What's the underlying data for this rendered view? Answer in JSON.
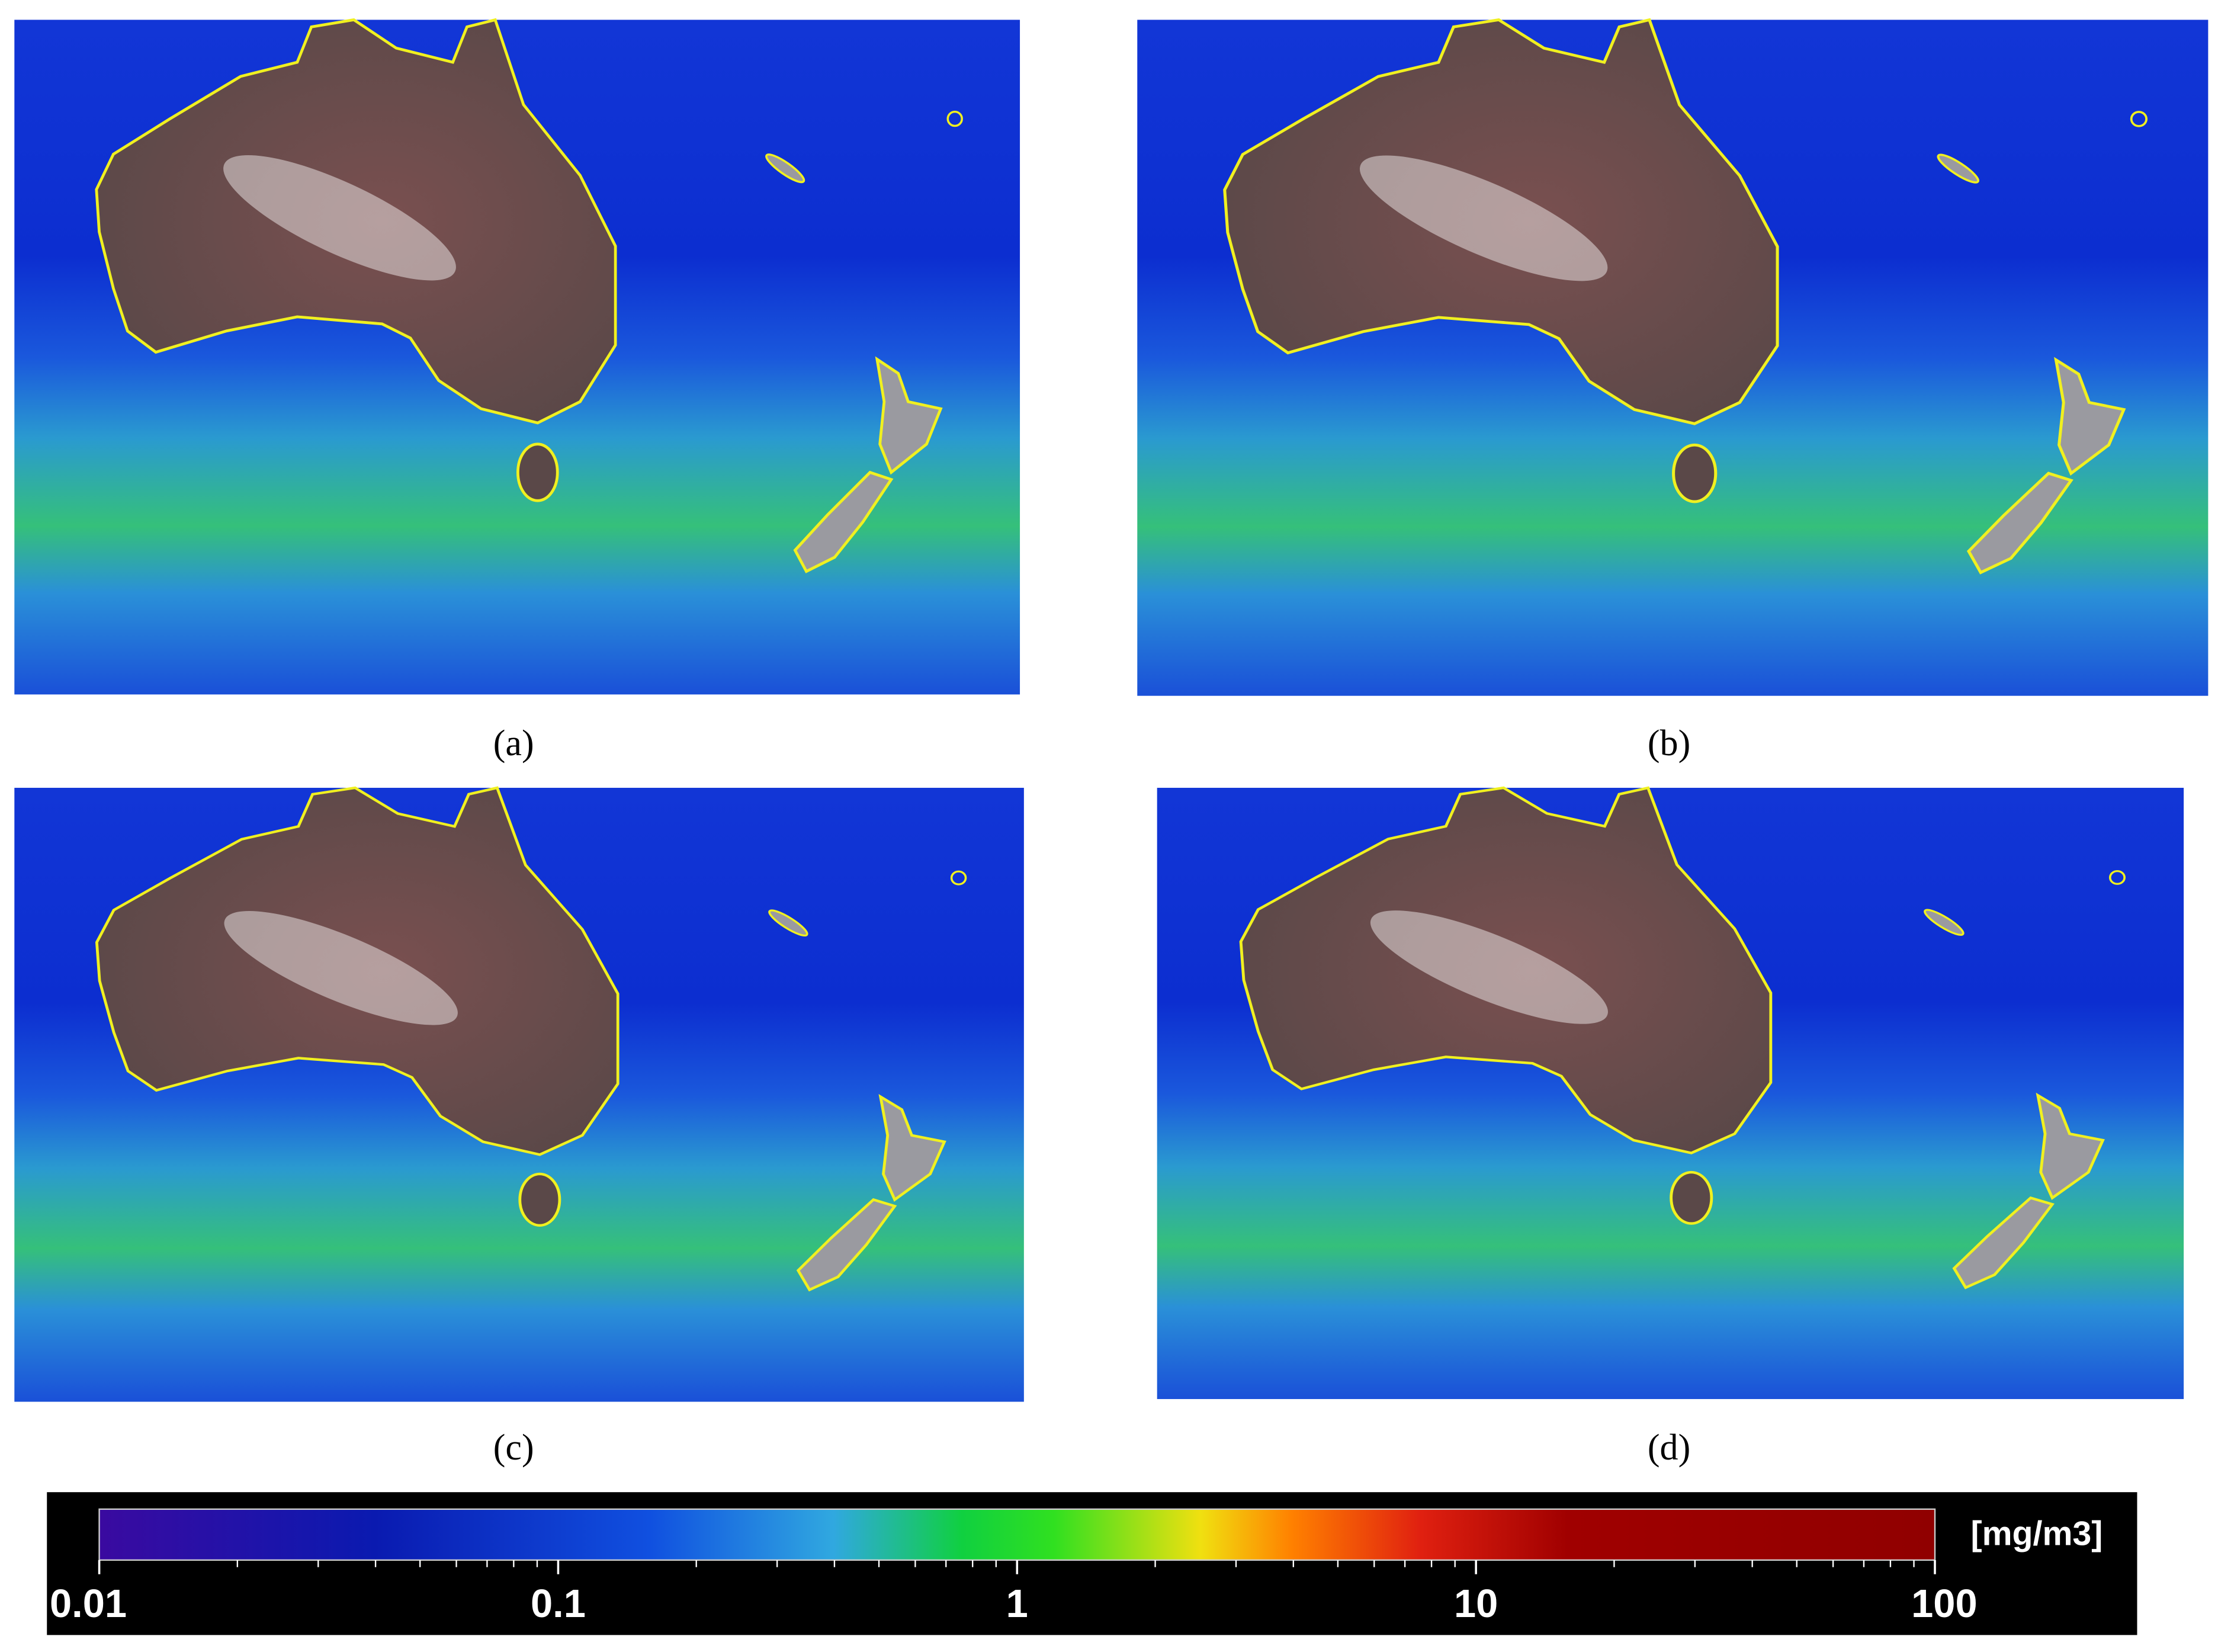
{
  "panels": [
    {
      "label": "(a)"
    },
    {
      "label": "(b)"
    },
    {
      "label": "(c)"
    },
    {
      "label": "(d)"
    }
  ],
  "colorbar": {
    "unit": "[mg/m3]",
    "log_scale": true,
    "lim": [
      0.01,
      100
    ],
    "ticks": [
      0.01,
      0.1,
      1,
      10,
      100
    ]
  }
}
